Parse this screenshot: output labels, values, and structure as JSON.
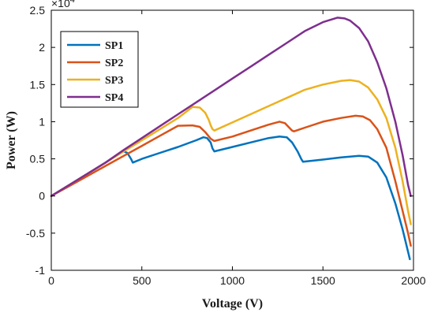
{
  "chart_data": {
    "type": "line",
    "title": "",
    "xlabel": "Voltage (V)",
    "ylabel": "Power (W)",
    "y_multiplier_label": "×10",
    "y_multiplier_exponent": "4",
    "xlim": [
      0,
      2000
    ],
    "ylim": [
      -1,
      2.5
    ],
    "grid": false,
    "legend_position": "top-left",
    "x_ticks": [
      0,
      500,
      1000,
      1500,
      2000
    ],
    "x_tick_labels": [
      "0",
      "500",
      "1000",
      "1500",
      "2000"
    ],
    "y_ticks": [
      -1,
      -0.5,
      0,
      0.5,
      1,
      1.5,
      2,
      2.5
    ],
    "y_tick_labels": [
      "-1",
      "-0.5",
      "0",
      "0.5",
      "1",
      "1.5",
      "2",
      "2.5"
    ],
    "series": [
      {
        "name": "SP1",
        "color": "#0072BD",
        "x": [
          0,
          100,
          200,
          300,
          380,
          400,
          420,
          440,
          450,
          500,
          600,
          700,
          800,
          840,
          860,
          880,
          890,
          900,
          1000,
          1100,
          1200,
          1260,
          1300,
          1330,
          1360,
          1380,
          1390,
          1500,
          1600,
          1700,
          1750,
          1800,
          1850,
          1900,
          1940,
          1970,
          1980
        ],
        "y": [
          0,
          0.15,
          0.3,
          0.45,
          0.58,
          0.6,
          0.58,
          0.5,
          0.45,
          0.5,
          0.58,
          0.66,
          0.75,
          0.79,
          0.78,
          0.72,
          0.64,
          0.6,
          0.66,
          0.72,
          0.78,
          0.8,
          0.79,
          0.72,
          0.6,
          0.5,
          0.46,
          0.49,
          0.52,
          0.54,
          0.53,
          0.45,
          0.25,
          -0.1,
          -0.45,
          -0.75,
          -0.85
        ]
      },
      {
        "name": "SP2",
        "color": "#D95319",
        "x": [
          0,
          100,
          200,
          300,
          400,
          500,
          600,
          700,
          780,
          820,
          850,
          880,
          900,
          1000,
          1100,
          1200,
          1260,
          1290,
          1310,
          1330,
          1340,
          1400,
          1500,
          1600,
          1680,
          1720,
          1760,
          1800,
          1850,
          1900,
          1940,
          1970,
          1985
        ],
        "y": [
          0,
          0.135,
          0.27,
          0.405,
          0.54,
          0.675,
          0.81,
          0.945,
          0.95,
          0.93,
          0.86,
          0.77,
          0.74,
          0.8,
          0.88,
          0.96,
          1.0,
          0.98,
          0.93,
          0.88,
          0.87,
          0.92,
          1.0,
          1.05,
          1.08,
          1.07,
          1.02,
          0.9,
          0.65,
          0.2,
          -0.2,
          -0.5,
          -0.67
        ]
      },
      {
        "name": "SP3",
        "color": "#EDB120",
        "x": [
          0,
          100,
          200,
          300,
          400,
          500,
          600,
          700,
          780,
          820,
          850,
          870,
          880,
          890,
          900,
          1000,
          1100,
          1200,
          1300,
          1400,
          1500,
          1600,
          1650,
          1700,
          1750,
          1800,
          1850,
          1900,
          1940,
          1970,
          1985
        ],
        "y": [
          0,
          0.15,
          0.3,
          0.45,
          0.6,
          0.75,
          0.9,
          1.05,
          1.2,
          1.19,
          1.12,
          1.02,
          0.95,
          0.9,
          0.88,
          0.99,
          1.1,
          1.21,
          1.32,
          1.43,
          1.5,
          1.55,
          1.56,
          1.54,
          1.46,
          1.3,
          1.05,
          0.65,
          0.2,
          -0.2,
          -0.38
        ]
      },
      {
        "name": "SP4",
        "color": "#7E2F8E",
        "x": [
          0,
          100,
          200,
          300,
          400,
          500,
          600,
          700,
          800,
          900,
          1000,
          1100,
          1200,
          1300,
          1400,
          1500,
          1580,
          1620,
          1650,
          1700,
          1750,
          1800,
          1850,
          1900,
          1940,
          1970,
          1985
        ],
        "y": [
          0,
          0.15,
          0.3,
          0.45,
          0.62,
          0.78,
          0.94,
          1.1,
          1.26,
          1.42,
          1.58,
          1.74,
          1.9,
          2.06,
          2.22,
          2.34,
          2.4,
          2.39,
          2.36,
          2.26,
          2.08,
          1.8,
          1.45,
          1.0,
          0.55,
          0.15,
          0.0
        ]
      }
    ]
  }
}
